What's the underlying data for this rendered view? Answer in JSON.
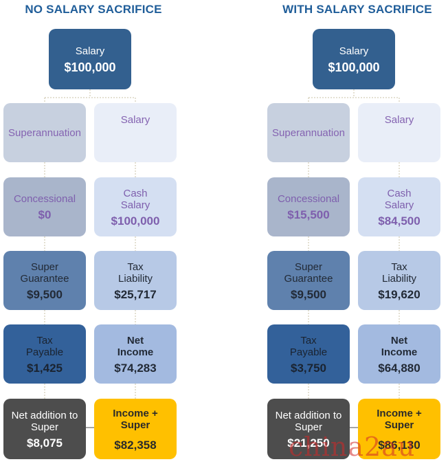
{
  "left": {
    "heading": "NO SALARY SACRIFICE",
    "top": {
      "label": "Salary",
      "value": "$100,000"
    },
    "superannuation": {
      "label": "Superannuation"
    },
    "salary": {
      "label": "Salary"
    },
    "concessional": {
      "label": "Concessional",
      "value": "$0"
    },
    "cash_salary": {
      "label": "Cash Salary",
      "value": "$100,000"
    },
    "super_guarantee": {
      "label": "Super Guarantee",
      "value": "$9,500"
    },
    "tax_liability": {
      "label": "Tax Liability",
      "value": "$25,717"
    },
    "tax_payable": {
      "label": "Tax Payable",
      "value": "$1,425"
    },
    "net_income": {
      "label": "Net Income",
      "value": "$74,283"
    },
    "net_addition": {
      "label": "Net addition to Super",
      "value": "$8,075"
    },
    "income_super": {
      "label": "Income + Super",
      "value": "$82,358"
    }
  },
  "right": {
    "heading": "WITH SALARY SACRIFICE",
    "top": {
      "label": "Salary",
      "value": "$100,000"
    },
    "superannuation": {
      "label": "Superannuation"
    },
    "salary": {
      "label": "Salary"
    },
    "concessional": {
      "label": "Concessional",
      "value": "$15,500"
    },
    "cash_salary": {
      "label": "Cash Salary",
      "value": "$84,500"
    },
    "super_guarantee": {
      "label": "Super Guarantee",
      "value": "$9,500"
    },
    "tax_liability": {
      "label": "Tax Liability",
      "value": "$19,620"
    },
    "tax_payable": {
      "label": "Tax Payable",
      "value": "$3,750"
    },
    "net_income": {
      "label": "Net Income",
      "value": "$64,880"
    },
    "net_addition": {
      "label": "Net addition to Super",
      "value": "$21,250"
    },
    "income_super": {
      "label": "Income + Super",
      "value": "$86,130"
    }
  },
  "watermark": "china2au",
  "colors": {
    "heading": "#1f5d99",
    "salary_top": "#33608f",
    "tax_payable": "#33619a",
    "net_addition": "#4d4d4d",
    "income_super": "#ffc000",
    "label_purple": "#8463b1"
  }
}
